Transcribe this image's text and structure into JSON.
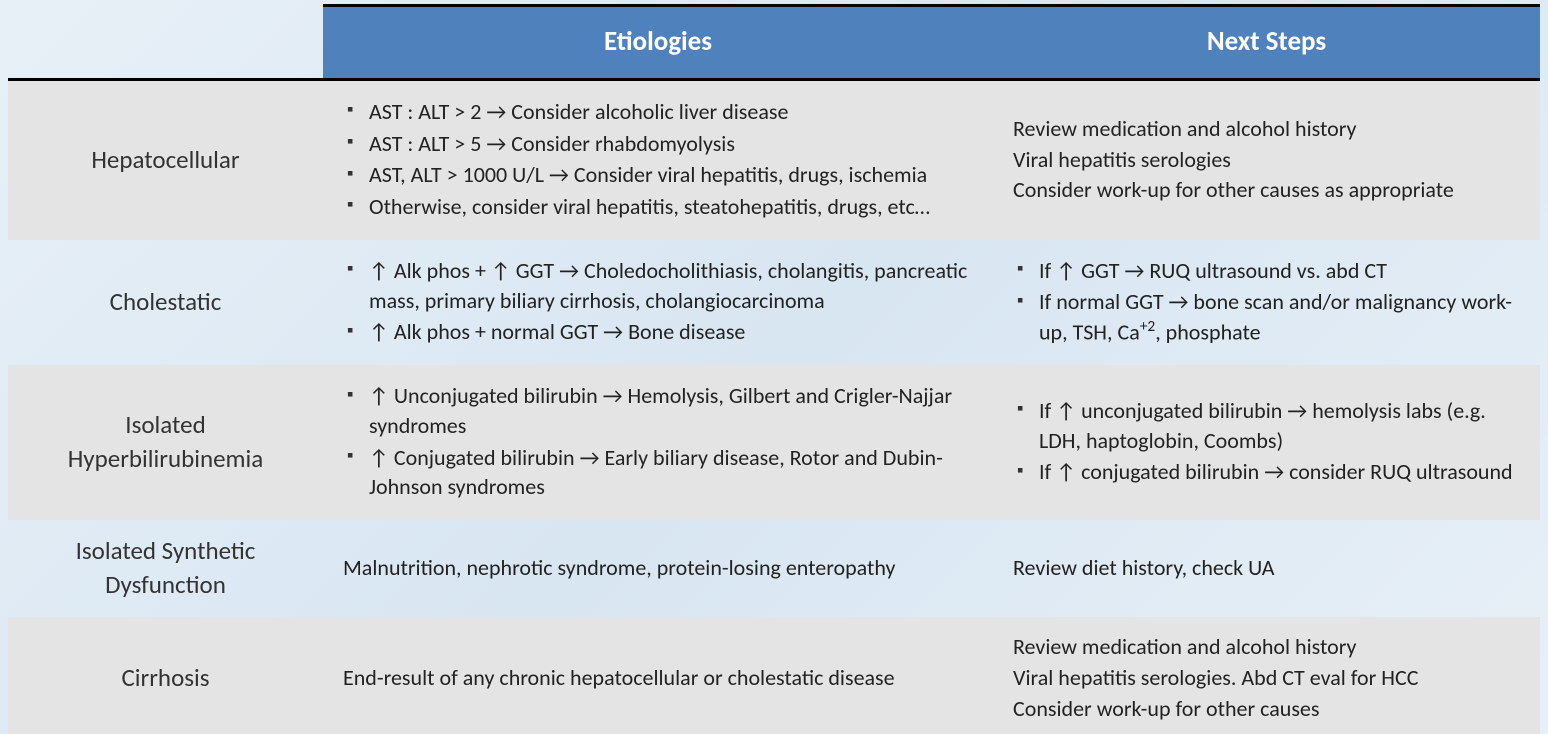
{
  "colors": {
    "header_bg": "#4f81bd",
    "header_text": "#ffffff",
    "row_shade": "#e4e4e4",
    "border": "#000000",
    "page_bg_1": "#e8f0f7",
    "page_bg_2": "#d8e6f2",
    "text": "#222222"
  },
  "typography": {
    "font_family": "Calibri",
    "header_fontsize": 27,
    "category_fontsize": 25,
    "body_fontsize": 22
  },
  "layout": {
    "col_widths": {
      "category": 315,
      "etiologies": 670,
      "next_steps": "auto"
    },
    "header_border_width": 3,
    "bottom_border_width": 3
  },
  "headers": {
    "col1": "",
    "col2": "Etiologies",
    "col3": "Next Steps"
  },
  "rows": [
    {
      "category": "Hepatocellular",
      "shaded": true,
      "etiologies": {
        "type": "bullets",
        "items": [
          "AST : ALT  >  2   →   Consider alcoholic liver disease",
          "AST : ALT  >  5   →   Consider rhabdomyolysis",
          "AST, ALT > 1000 U/L   →   Consider viral hepatitis, drugs, ischemia",
          "Otherwise, consider viral hepatitis, steatohepatitis, drugs, etc…"
        ]
      },
      "next_steps": {
        "type": "lines",
        "items": [
          "Review medication and alcohol history",
          "Viral hepatitis serologies",
          "Consider work-up for other causes as appropriate"
        ]
      }
    },
    {
      "category": "Cholestatic",
      "shaded": false,
      "etiologies": {
        "type": "bullets",
        "items": [
          "↑ Alk phos  + ↑ GGT   →   Choledocholithiasis, cholangitis, pancreatic mass, primary biliary cirrhosis, cholangiocarcinoma",
          "↑ Alk phos  + normal GGT   →   Bone disease"
        ]
      },
      "next_steps": {
        "type": "bullets",
        "items": [
          "If ↑ GGT  →   RUQ ultrasound vs. abd CT",
          "If normal GGT  →   bone scan and/or malignancy work-up, TSH, Ca⁺², phosphate"
        ]
      }
    },
    {
      "category": "Isolated Hyperbilirubinemia",
      "shaded": true,
      "etiologies": {
        "type": "bullets",
        "items": [
          "↑ Unconjugated bilirubin  →   Hemolysis, Gilbert and Crigler-Najjar syndromes",
          "↑ Conjugated bilirubin  →   Early biliary disease, Rotor and Dubin-Johnson syndromes"
        ]
      },
      "next_steps": {
        "type": "bullets",
        "items": [
          "If ↑ unconjugated bilirubin  →   hemolysis labs (e.g. LDH, haptoglobin, Coombs)",
          "If ↑ conjugated bilirubin  →   consider RUQ ultrasound"
        ]
      }
    },
    {
      "category": "Isolated Synthetic Dysfunction",
      "shaded": false,
      "etiologies": {
        "type": "text",
        "items": [
          "Malnutrition, nephrotic syndrome, protein-losing enteropathy"
        ]
      },
      "next_steps": {
        "type": "text",
        "items": [
          "Review diet history, check UA"
        ]
      }
    },
    {
      "category": "Cirrhosis",
      "shaded": true,
      "etiologies": {
        "type": "text",
        "items": [
          "End-result of any chronic hepatocellular or cholestatic disease"
        ]
      },
      "next_steps": {
        "type": "lines",
        "items": [
          "Review medication and alcohol history",
          "Viral hepatitis serologies.  Abd CT eval for HCC",
          "Consider work-up for other causes"
        ]
      }
    }
  ]
}
